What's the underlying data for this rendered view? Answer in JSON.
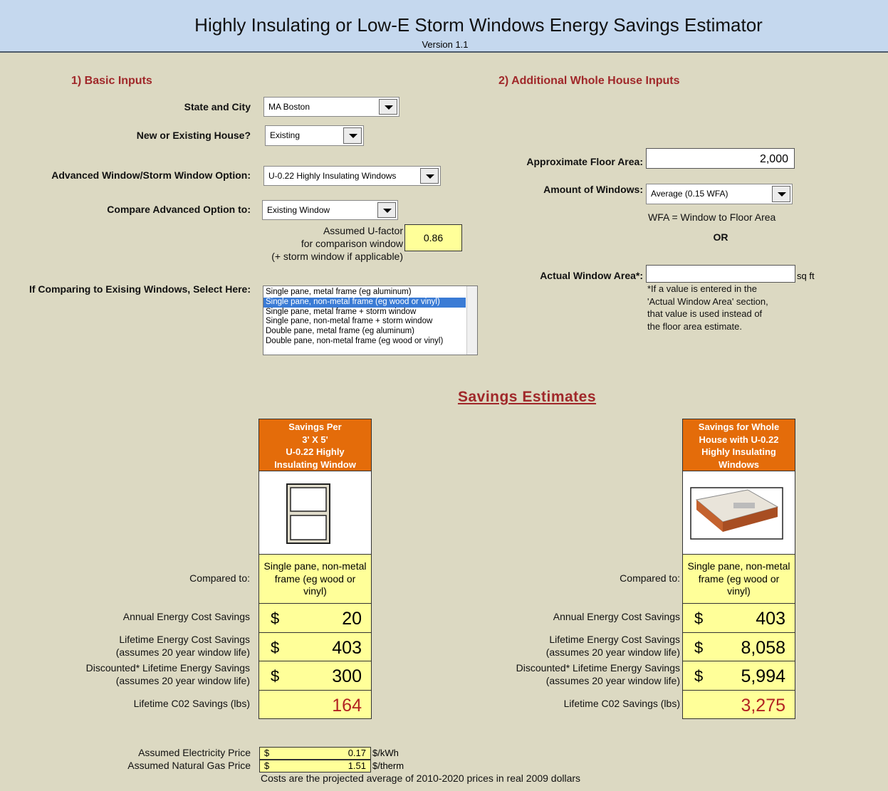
{
  "header": {
    "title": "Highly Insulating or Low-E Storm Windows Energy Savings Estimator",
    "version": "Version 1.1"
  },
  "basic": {
    "heading": "1) Basic Inputs",
    "state_city": {
      "label": "State and City",
      "value": "MA Boston"
    },
    "house": {
      "label": "New or Existing House?",
      "value": "Existing"
    },
    "option": {
      "label": "Advanced Window/Storm Window Option:",
      "value": "U-0.22 Highly Insulating Windows"
    },
    "compare": {
      "label": "Compare Advanced Option to:",
      "value": "Existing Window"
    },
    "ufactor": {
      "lines": [
        "Assumed U-factor",
        "for comparison window",
        "(+ storm window if applicable)"
      ],
      "value": "0.86"
    },
    "existing": {
      "label": "If Comparing to Exising Windows, Select Here:",
      "options": [
        "Single pane, metal frame (eg aluminum)",
        "Single pane, non-metal frame (eg wood or vinyl)",
        "Single pane, metal frame + storm window",
        "Single pane, non-metal frame + storm window",
        "Double pane, metal frame (eg aluminum)",
        "Double pane, non-metal frame (eg wood or vinyl)"
      ]
    }
  },
  "additional": {
    "heading": "2) Additional Whole House Inputs",
    "floor_area": {
      "label": "Approximate Floor Area:",
      "value": "2,000"
    },
    "windows": {
      "label": "Amount of Windows:",
      "value": "Average (0.15 WFA)"
    },
    "wfa_note": "WFA = Window to Floor Area",
    "or": "OR",
    "actual": {
      "label": "Actual Window Area*:",
      "unit": "sq ft"
    },
    "footnote": [
      "*If a value is entered in the",
      "'Actual Window Area' section,",
      "that value is used instead of",
      "the floor area estimate."
    ]
  },
  "savings": {
    "heading": "Savings Estimates",
    "compared_label": "Compared to:",
    "currency": "$",
    "row_labels": [
      [
        "Annual Energy Cost Savings"
      ],
      [
        "Lifetime Energy Cost Savings",
        "(assumes 20 year window life)"
      ],
      [
        "Discounted* Lifetime Energy Savings",
        "(assumes 20 year window life)"
      ],
      [
        "Lifetime C02 Savings (lbs)"
      ]
    ],
    "columns": [
      {
        "header": [
          "Savings Per",
          "3' X 5'",
          "U-0.22 Highly",
          "Insulating Window"
        ],
        "compared": [
          "Single pane, non-metal",
          "frame (eg wood or",
          "vinyl)"
        ],
        "values": [
          "20",
          "403",
          "300",
          "164"
        ]
      },
      {
        "header": [
          "Savings for Whole",
          "House with U-0.22",
          "Highly Insulating",
          "Windows"
        ],
        "compared": [
          "Single pane, non-metal",
          "frame (eg wood or",
          "vinyl)"
        ],
        "values": [
          "403",
          "8,058",
          "5,994",
          "3,275"
        ]
      }
    ]
  },
  "prices": {
    "rows": [
      {
        "label": "Assumed Electricity Price",
        "currency": "$",
        "value": "0.17",
        "unit": "$/kWh"
      },
      {
        "label": "Assumed Natural Gas Price",
        "currency": "$",
        "value": "1.51",
        "unit": "$/therm"
      }
    ],
    "note": "Costs are the projected average of 2010-2020 prices in real 2009 dollars"
  }
}
